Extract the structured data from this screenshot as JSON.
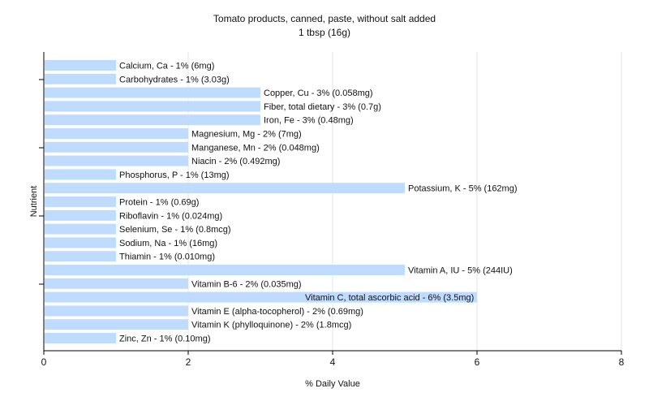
{
  "chart_data": {
    "type": "bar",
    "orientation": "horizontal",
    "title": "Tomato products, canned, paste, without salt added",
    "subtitle": "1 tbsp (16g)",
    "xlabel": "% Daily Value",
    "ylabel": "Nutrient",
    "xlim": [
      0,
      8
    ],
    "xticks": [
      "0",
      "2",
      "4",
      "6",
      "8"
    ],
    "grid": true,
    "legend": "none",
    "bar_color": "#bfdbff",
    "categories": [
      "Calcium, Ca",
      "Carbohydrates",
      "Copper, Cu",
      "Fiber, total dietary",
      "Iron, Fe",
      "Magnesium, Mg",
      "Manganese, Mn",
      "Niacin",
      "Phosphorus, P",
      "Potassium, K",
      "Protein",
      "Riboflavin",
      "Selenium, Se",
      "Sodium, Na",
      "Thiamin",
      "Vitamin A, IU",
      "Vitamin B-6",
      "Vitamin C, total ascorbic acid",
      "Vitamin E (alpha-tocopherol)",
      "Vitamin K (phylloquinone)",
      "Zinc, Zn"
    ],
    "values": [
      1,
      1,
      3,
      3,
      3,
      2,
      2,
      2,
      1,
      5,
      1,
      1,
      1,
      1,
      1,
      5,
      2,
      6,
      2,
      2,
      1
    ],
    "labels": [
      "Calcium, Ca - 1% (6mg)",
      "Carbohydrates - 1% (3.03g)",
      "Copper, Cu - 3% (0.058mg)",
      "Fiber, total dietary - 3% (0.7g)",
      "Iron, Fe - 3% (0.48mg)",
      "Magnesium, Mg - 2% (7mg)",
      "Manganese, Mn - 2% (0.048mg)",
      "Niacin - 2% (0.492mg)",
      "Phosphorus, P - 1% (13mg)",
      "Potassium, K - 5% (162mg)",
      "Protein - 1% (0.69g)",
      "Riboflavin - 1% (0.024mg)",
      "Selenium, Se - 1% (0.8mcg)",
      "Sodium, Na - 1% (16mg)",
      "Thiamin - 1% (0.010mg)",
      "Vitamin A, IU - 5% (244IU)",
      "Vitamin B-6 - 2% (0.035mg)",
      "Vitamin C, total ascorbic acid - 6% (3.5mg)",
      "Vitamin E (alpha-tocopherol) - 2% (0.69mg)",
      "Vitamin K (phylloquinone) - 2% (1.8mcg)",
      "Zinc, Zn - 1% (0.10mg)"
    ]
  }
}
